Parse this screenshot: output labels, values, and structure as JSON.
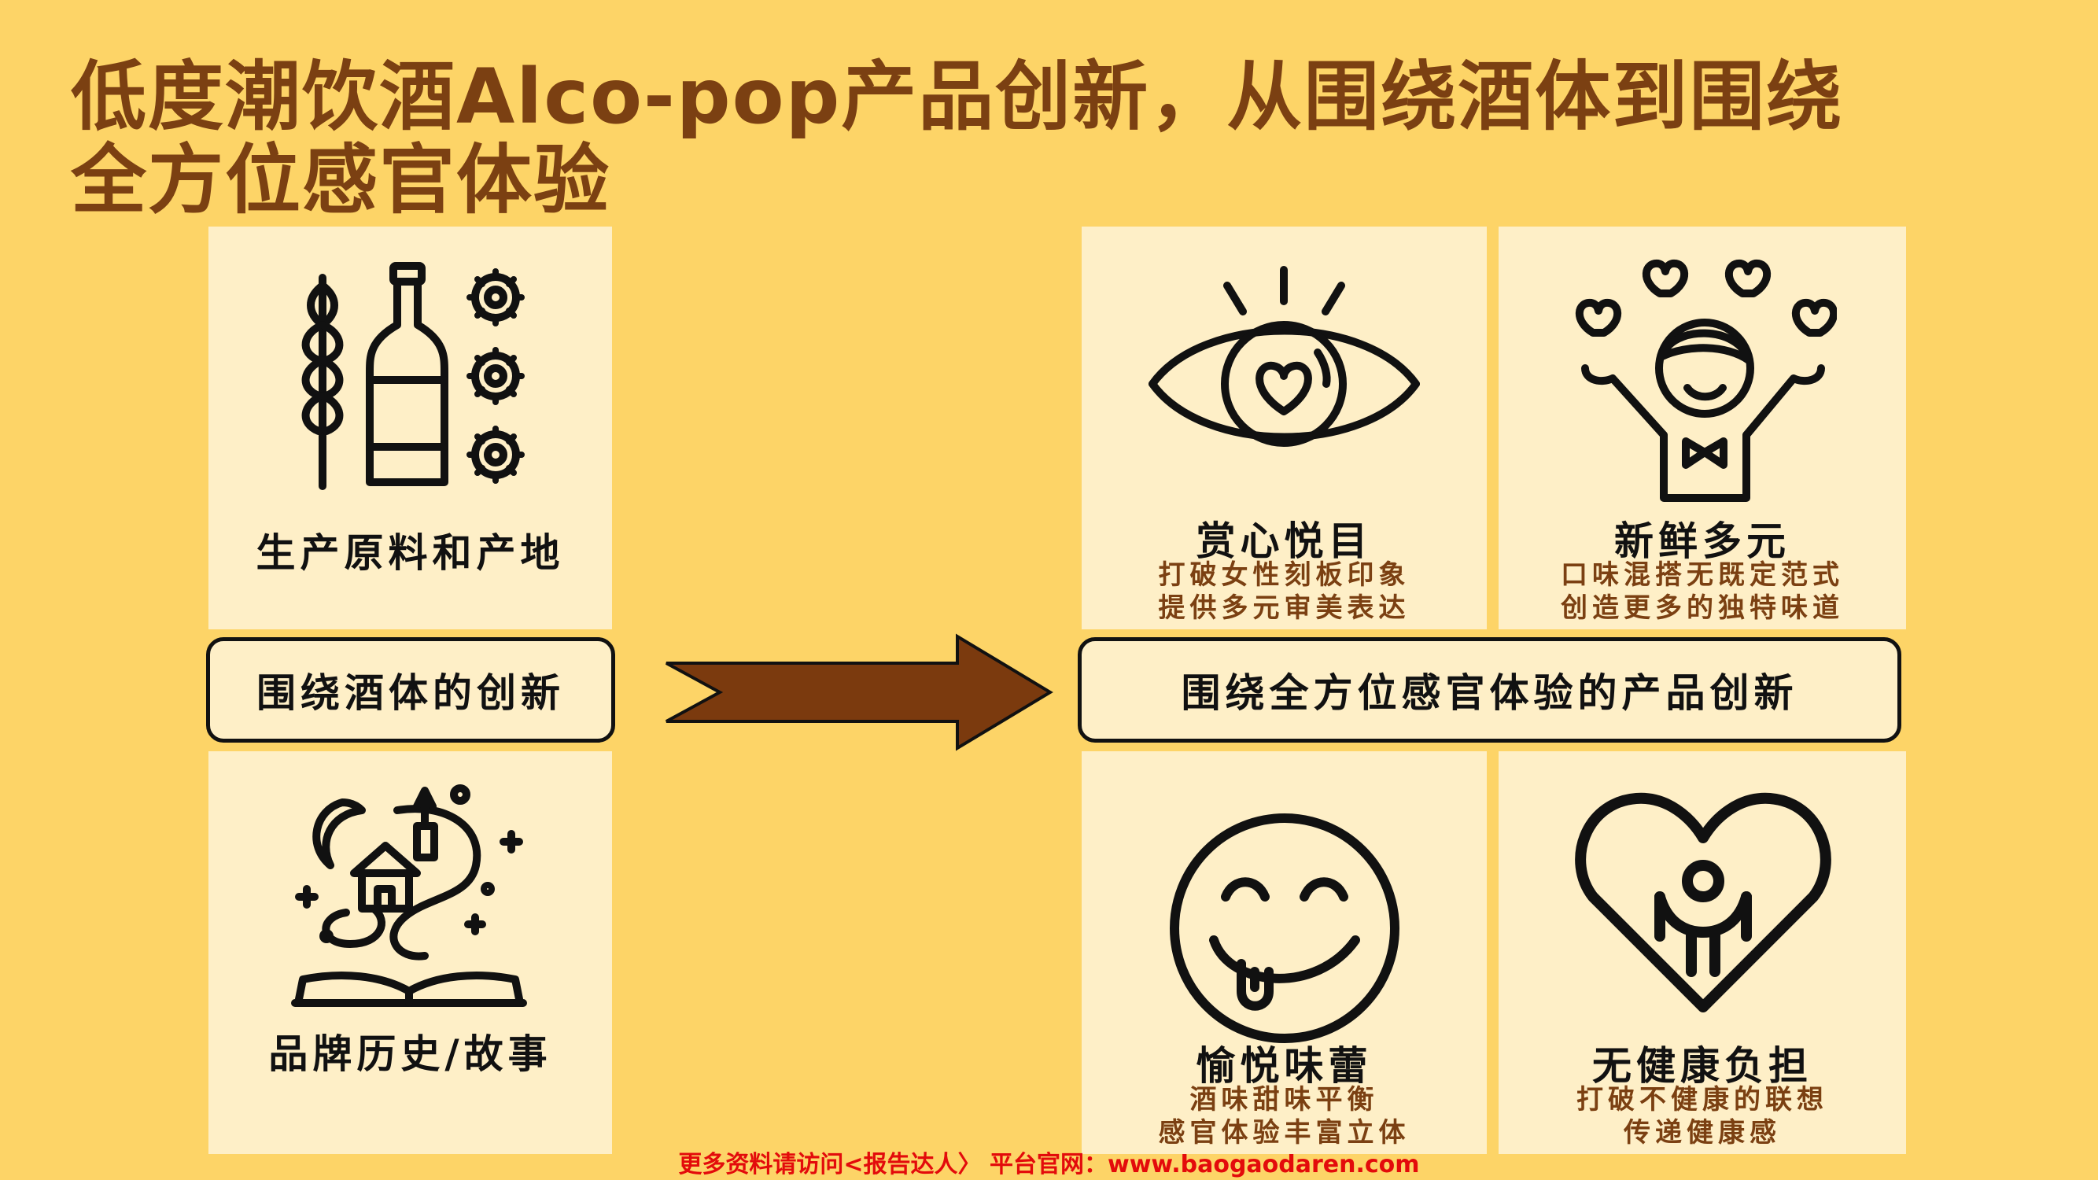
{
  "title": {
    "line1": "低度潮饮酒Alco-pop产品创新，从围绕酒体到围绕",
    "line2": "全方位感官体验"
  },
  "left": {
    "card_top": {
      "label": "生产原料和产地",
      "icon": "wheat-bottle-gears-icon"
    },
    "pill": "围绕酒体的创新",
    "card_bottom": {
      "label": "品牌历史/故事",
      "icon": "storybook-castle-icon"
    }
  },
  "arrow": {
    "icon": "right-arrow-icon",
    "color": "#7B3A0E"
  },
  "right": {
    "pill": "围绕全方位感官体验的产品创新",
    "cards": [
      {
        "title": "赏心悦目",
        "sub1": "打破女性刻板印象",
        "sub2": "提供多元审美表达",
        "icon": "eye-heart-icon"
      },
      {
        "title": "新鲜多元",
        "sub1": "口味混搭无既定范式",
        "sub2": "创造更多的独特味道",
        "icon": "cheering-person-hearts-icon"
      },
      {
        "title": "愉悦味蕾",
        "sub1": "酒味甜味平衡",
        "sub2": "感官体验丰富立体",
        "icon": "tongue-smiley-icon"
      },
      {
        "title": "无健康负担",
        "sub1": "打破不健康的联想",
        "sub2": "传递健康感",
        "icon": "heart-person-icon"
      }
    ]
  },
  "footer": "更多资料请访问<报告达人〉 平台官网：www.baogaodaren.com",
  "colors": {
    "background": "#FDD467",
    "card": "#FEEFC7",
    "title": "#7B4012",
    "footer": "#E30B0B"
  }
}
